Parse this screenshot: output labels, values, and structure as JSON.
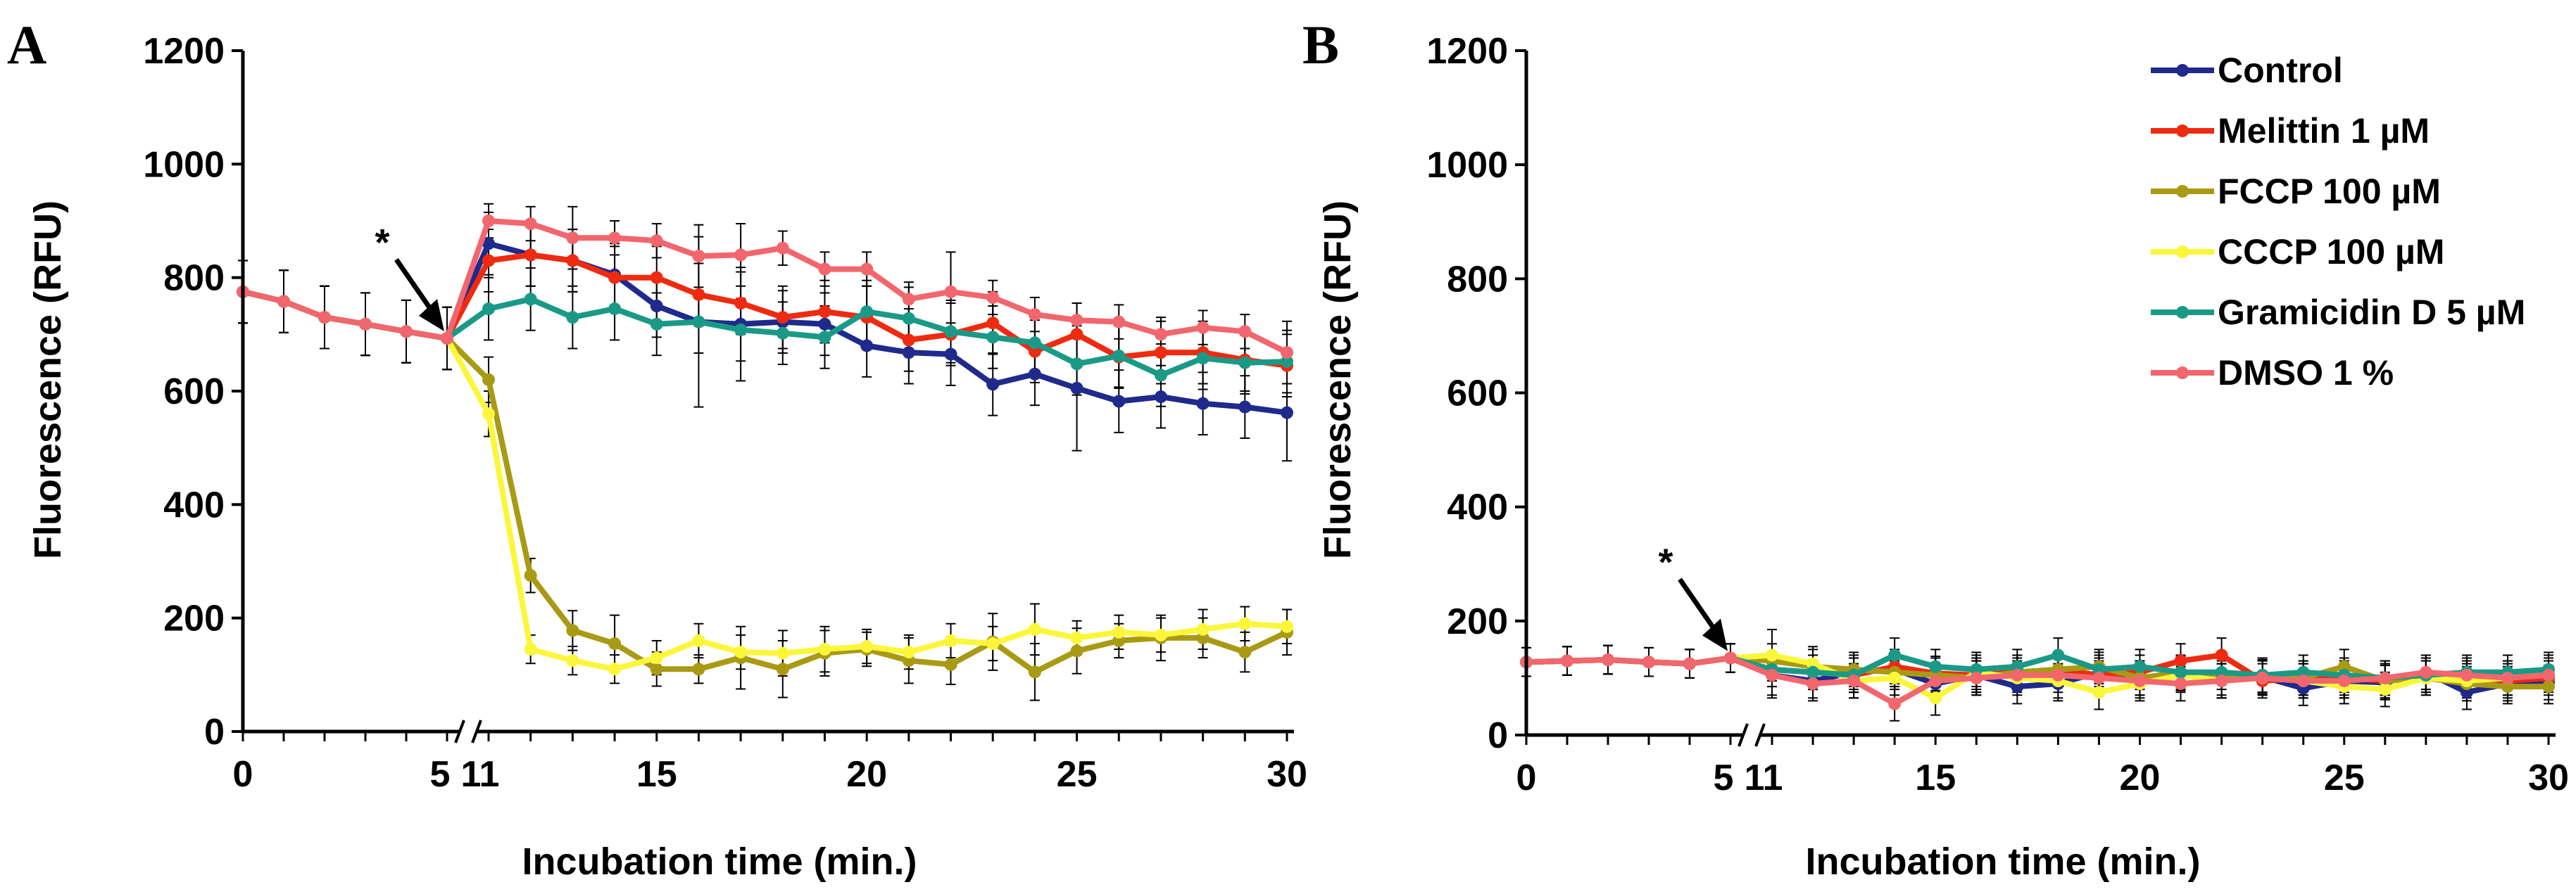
{
  "chart_data": [
    {
      "type": "line",
      "panel_label": "A",
      "xlabel": "Incubation time (min.)",
      "ylabel": "Fluorescence (RFU)",
      "ylim": [
        0,
        1200
      ],
      "yticks": [
        "0",
        "200",
        "400",
        "600",
        "800",
        "1000",
        "1200"
      ],
      "xtick_labels": [
        "0",
        "5",
        "11",
        "15",
        "20",
        "25",
        "30"
      ],
      "axis_break": "//",
      "annotation": "*",
      "x": [
        0,
        1,
        2,
        3,
        4,
        5,
        11,
        12,
        13,
        14,
        15,
        16,
        17,
        18,
        19,
        20,
        21,
        22,
        23,
        24,
        25,
        26,
        27,
        28,
        29,
        30
      ],
      "series": [
        {
          "name": "Control",
          "color": "#1f2a8c",
          "values": [
            775,
            758,
            730,
            718,
            705,
            693,
            860,
            840,
            830,
            805,
            750,
            722,
            718,
            722,
            718,
            680,
            668,
            665,
            612,
            630,
            605,
            582,
            590,
            578,
            572,
            562
          ],
          "errors": [
            55,
            55,
            55,
            55,
            55,
            55,
            55,
            55,
            55,
            55,
            55,
            150,
            100,
            55,
            55,
            55,
            55,
            55,
            55,
            55,
            110,
            55,
            55,
            55,
            55,
            85
          ]
        },
        {
          "name": "Melittin 1 µM",
          "color": "#ee2b10",
          "values": [
            775,
            758,
            730,
            718,
            705,
            693,
            830,
            840,
            830,
            800,
            800,
            770,
            755,
            730,
            740,
            730,
            690,
            700,
            720,
            670,
            700,
            660,
            668,
            668,
            655,
            645
          ],
          "errors": [
            55,
            55,
            55,
            55,
            55,
            55,
            55,
            55,
            55,
            55,
            55,
            55,
            55,
            55,
            55,
            55,
            55,
            55,
            55,
            55,
            55,
            55,
            55,
            55,
            55,
            55
          ]
        },
        {
          "name": "FCCP 100 µM",
          "color": "#a99a14",
          "values": [
            775,
            758,
            730,
            718,
            705,
            693,
            620,
            275,
            178,
            155,
            110,
            110,
            130,
            110,
            138,
            145,
            125,
            118,
            158,
            105,
            142,
            160,
            165,
            165,
            140,
            175
          ],
          "errors": [
            55,
            55,
            55,
            55,
            55,
            55,
            40,
            30,
            35,
            50,
            30,
            25,
            55,
            50,
            40,
            30,
            40,
            35,
            50,
            50,
            40,
            30,
            40,
            35,
            35,
            40
          ]
        },
        {
          "name": "CCCP 100 µM",
          "color": "#fbf63a",
          "values": [
            775,
            758,
            730,
            718,
            705,
            693,
            560,
            145,
            125,
            110,
            130,
            160,
            140,
            138,
            145,
            150,
            140,
            160,
            155,
            180,
            165,
            175,
            170,
            180,
            190,
            185
          ],
          "errors": [
            55,
            55,
            55,
            55,
            55,
            55,
            40,
            25,
            25,
            25,
            30,
            30,
            30,
            40,
            40,
            30,
            30,
            30,
            30,
            45,
            30,
            30,
            30,
            35,
            30,
            30
          ]
        },
        {
          "name": "Gramicidin D 5 µM",
          "color": "#1a9a86",
          "values": [
            775,
            758,
            730,
            718,
            705,
            693,
            745,
            762,
            730,
            745,
            718,
            722,
            708,
            702,
            695,
            740,
            728,
            705,
            695,
            685,
            648,
            662,
            628,
            658,
            650,
            652
          ],
          "errors": [
            55,
            55,
            55,
            55,
            55,
            55,
            55,
            55,
            55,
            55,
            55,
            55,
            55,
            55,
            55,
            55,
            55,
            55,
            55,
            55,
            55,
            55,
            55,
            55,
            55,
            55
          ]
        },
        {
          "name": "DMSO 1 %",
          "color": "#f2666e",
          "values": [
            775,
            758,
            730,
            718,
            705,
            693,
            900,
            895,
            870,
            870,
            865,
            838,
            840,
            852,
            815,
            815,
            762,
            775,
            765,
            735,
            725,
            722,
            700,
            712,
            705,
            668
          ],
          "errors": [
            55,
            55,
            55,
            55,
            55,
            55,
            30,
            30,
            55,
            30,
            30,
            55,
            55,
            30,
            30,
            30,
            30,
            70,
            30,
            30,
            30,
            30,
            30,
            30,
            30,
            55
          ]
        }
      ]
    },
    {
      "type": "line",
      "panel_label": "B",
      "xlabel": "Incubation time (min.)",
      "ylabel": "Fluorescence (RFU)",
      "ylim": [
        0,
        1200
      ],
      "yticks": [
        "0",
        "200",
        "400",
        "600",
        "800",
        "1000",
        "1200"
      ],
      "xtick_labels": [
        "0",
        "5",
        "11",
        "15",
        "20",
        "25",
        "30"
      ],
      "axis_break": "//",
      "annotation": "*",
      "legend_position": "top-right",
      "x": [
        0,
        1,
        2,
        3,
        4,
        5,
        11,
        12,
        13,
        14,
        15,
        16,
        17,
        18,
        19,
        20,
        21,
        22,
        23,
        24,
        25,
        26,
        27,
        28,
        29,
        30
      ],
      "series": [
        {
          "name": "Control",
          "color": "#1f2a8c",
          "values": [
            128,
            130,
            132,
            128,
            125,
            135,
            105,
            95,
            110,
            115,
            90,
            105,
            85,
            90,
            110,
            100,
            108,
            95,
            102,
            82,
            95,
            92,
            110,
            75,
            90,
            92
          ],
          "errors": [
            25,
            25,
            25,
            25,
            25,
            25,
            40,
            30,
            30,
            30,
            30,
            30,
            30,
            30,
            30,
            30,
            30,
            30,
            30,
            30,
            30,
            30,
            30,
            30,
            30,
            30
          ]
        },
        {
          "name": "Melittin 1 µM",
          "color": "#ee2b10",
          "values": [
            128,
            130,
            132,
            128,
            125,
            135,
            115,
            110,
            105,
            120,
            108,
            105,
            110,
            115,
            105,
            110,
            130,
            140,
            95,
            100,
            100,
            95,
            105,
            100,
            95,
            100
          ],
          "errors": [
            25,
            25,
            25,
            25,
            25,
            25,
            30,
            30,
            30,
            30,
            30,
            30,
            30,
            30,
            30,
            30,
            30,
            30,
            30,
            30,
            30,
            30,
            30,
            30,
            30,
            30
          ]
        },
        {
          "name": "FCCP 100 µM",
          "color": "#a99a14",
          "values": [
            128,
            130,
            132,
            128,
            125,
            135,
            130,
            120,
            115,
            110,
            105,
            100,
            110,
            115,
            120,
            100,
            110,
            100,
            105,
            100,
            120,
            95,
            100,
            90,
            85,
            85
          ],
          "errors": [
            25,
            25,
            25,
            25,
            25,
            25,
            30,
            30,
            30,
            30,
            30,
            30,
            30,
            30,
            30,
            30,
            30,
            30,
            30,
            30,
            30,
            30,
            30,
            30,
            30,
            30
          ]
        },
        {
          "name": "CCCP 100 µM",
          "color": "#fbf63a",
          "values": [
            128,
            130,
            132,
            128,
            125,
            135,
            140,
            125,
            95,
            100,
            65,
            110,
            100,
            95,
            75,
            90,
            105,
            95,
            100,
            95,
            85,
            80,
            100,
            95,
            100,
            110
          ],
          "errors": [
            25,
            25,
            25,
            25,
            25,
            25,
            45,
            30,
            30,
            30,
            30,
            30,
            30,
            30,
            30,
            30,
            30,
            30,
            30,
            30,
            30,
            30,
            30,
            30,
            30,
            30
          ]
        },
        {
          "name": "Gramicidin D 5 µM",
          "color": "#1a9a86",
          "values": [
            128,
            130,
            132,
            128,
            125,
            135,
            115,
            110,
            105,
            140,
            120,
            115,
            120,
            140,
            115,
            120,
            110,
            110,
            105,
            110,
            105,
            100,
            105,
            110,
            110,
            115
          ],
          "errors": [
            25,
            25,
            25,
            25,
            25,
            25,
            30,
            30,
            30,
            30,
            30,
            30,
            30,
            30,
            30,
            30,
            30,
            30,
            30,
            30,
            30,
            30,
            30,
            30,
            30,
            30
          ]
        },
        {
          "name": "DMSO 1 %",
          "color": "#f2666e",
          "values": [
            128,
            130,
            132,
            128,
            125,
            135,
            105,
            90,
            95,
            55,
            95,
            100,
            105,
            105,
            100,
            95,
            90,
            95,
            100,
            95,
            95,
            100,
            110,
            105,
            100,
            105
          ],
          "errors": [
            25,
            25,
            25,
            25,
            25,
            25,
            35,
            30,
            30,
            30,
            30,
            30,
            30,
            30,
            30,
            30,
            30,
            30,
            30,
            30,
            30,
            30,
            30,
            30,
            30,
            30
          ]
        }
      ]
    }
  ]
}
